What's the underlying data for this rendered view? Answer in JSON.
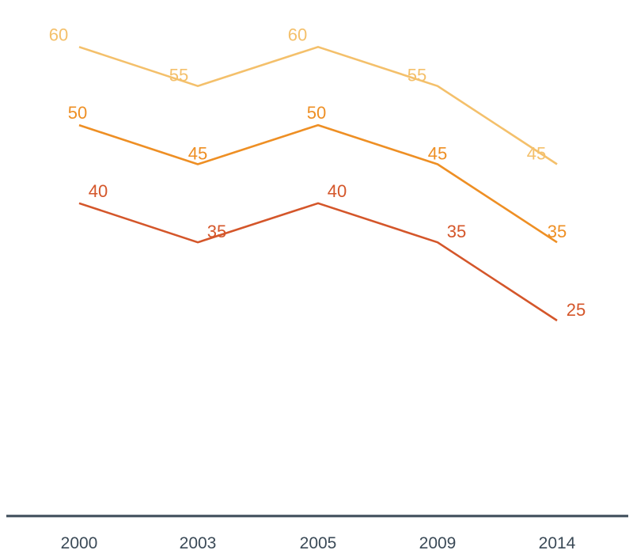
{
  "chart_data": {
    "type": "line",
    "x": [
      "2000",
      "2003",
      "2005",
      "2009",
      "2014"
    ],
    "series": [
      {
        "values": [
          60,
          55,
          60,
          55,
          45
        ],
        "color": "#f4c06b"
      },
      {
        "values": [
          50,
          45,
          50,
          45,
          35
        ],
        "color": "#ee8f24"
      },
      {
        "values": [
          40,
          35,
          40,
          35,
          25
        ],
        "color": "#d4562a"
      }
    ],
    "ylim": [
      0,
      66
    ],
    "grid": false,
    "legend": "none",
    "axis_color": "#3b4a57"
  }
}
